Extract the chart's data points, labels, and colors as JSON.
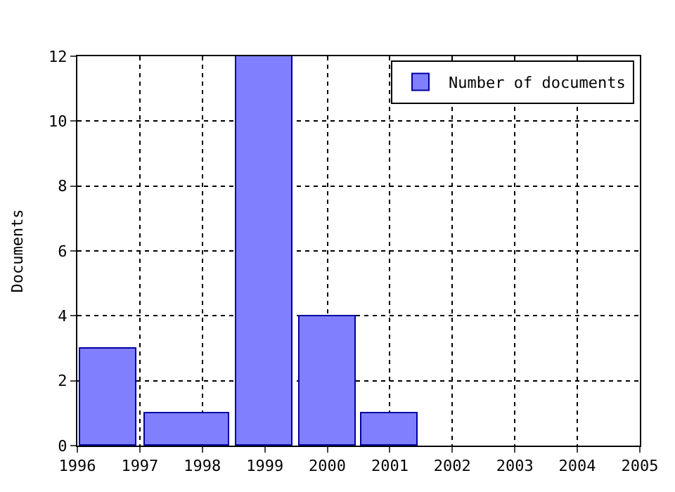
{
  "chart_data": {
    "type": "histogram",
    "ylabel": "Documents",
    "bins": [
      1996,
      1997,
      1998.5,
      1999.5,
      2000.5,
      2001.5
    ],
    "series": [
      {
        "name": "Number of documents",
        "color": "#8080ff",
        "values": [
          3,
          1,
          12,
          4,
          1
        ]
      }
    ],
    "xlim": [
      1996,
      2005
    ],
    "xticks": [
      1996,
      1997,
      1998,
      1999,
      2000,
      2001,
      2002,
      2003,
      2004,
      2005
    ],
    "ylim": [
      0,
      12
    ],
    "yticks": [
      0,
      2,
      4,
      6,
      8,
      10,
      12
    ],
    "grid": true,
    "legend": "top right"
  }
}
